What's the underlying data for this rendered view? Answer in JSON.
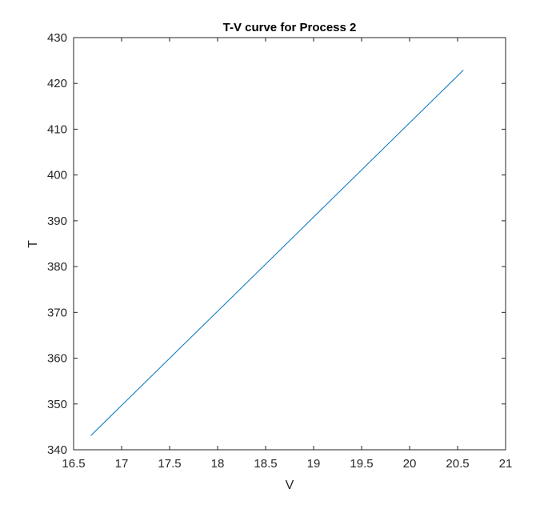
{
  "chart_data": {
    "type": "line",
    "title": "T-V curve for Process 2",
    "xlabel": "V",
    "ylabel": "T",
    "xlim": [
      16.5,
      21
    ],
    "ylim": [
      340,
      430
    ],
    "x_ticks": [
      16.5,
      17,
      17.5,
      18,
      18.5,
      19,
      19.5,
      20,
      20.5,
      21
    ],
    "x_tick_labels": [
      "16.5",
      "17",
      "17.5",
      "18",
      "18.5",
      "19",
      "19.5",
      "20",
      "20.5",
      "21"
    ],
    "y_ticks": [
      340,
      350,
      360,
      370,
      380,
      390,
      400,
      410,
      420,
      430
    ],
    "y_tick_labels": [
      "340",
      "350",
      "360",
      "370",
      "380",
      "390",
      "400",
      "410",
      "420",
      "430"
    ],
    "grid": false,
    "series": [
      {
        "color": "#0072BD",
        "x": [
          16.68,
          20.56
        ],
        "y": [
          343.1,
          422.9
        ]
      }
    ]
  }
}
